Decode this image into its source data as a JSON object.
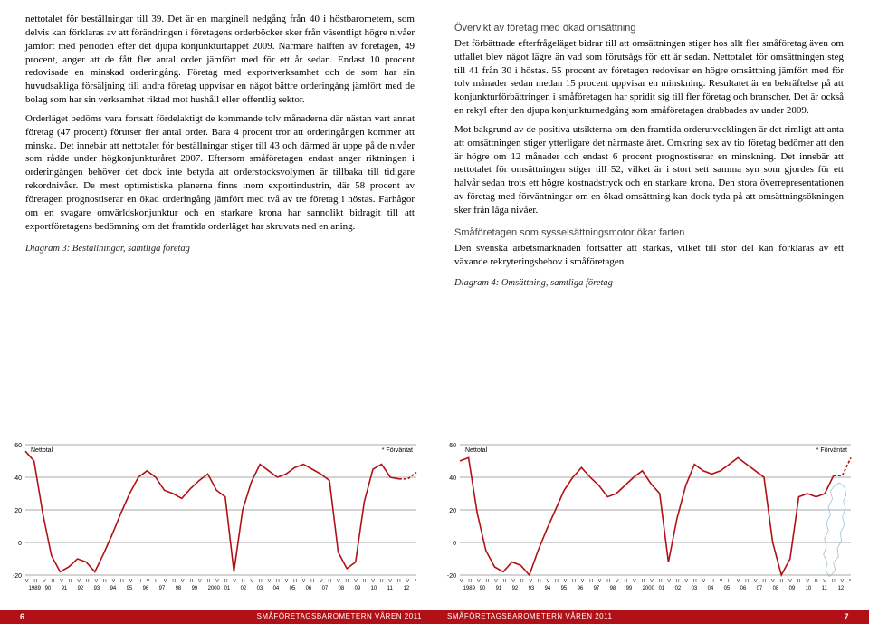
{
  "left": {
    "paragraphs": [
      "nettotalet för beställningar till 39. Det är en marginell nedgång från 40 i höstbarometern, som delvis kan förklaras av att förändringen i företagens orderböcker sker från väsentligt högre nivåer jämfört med perioden efter det djupa konjunkturtappet 2009. Närmare hälften av företagen, 49 procent, anger att de fått fler antal order jämfört med för ett år sedan. Endast 10 procent redovisade en minskad orderingång. Företag med exportverksamhet och de som har sin huvudsakliga försäljning till andra företag uppvisar en något bättre orderingång jämfört med de bolag som har sin verksamhet riktad mot hushåll eller offentlig sektor.",
      "Orderläget bedöms vara fortsatt fördelaktigt de kommande tolv månaderna där nästan vart annat företag (47 procent) förutser fler antal order. Bara 4 procent tror att orderingången kommer att minska. Det innebär att nettotalet för beställningar stiger till 43 och därmed är uppe på de nivåer som rådde under högkonjunkturåret 2007. Eftersom småföretagen endast anger riktningen i orderingången behöver det dock inte betyda att orderstocksvolymen är tillbaka till tidigare rekordnivåer. De mest optimistiska planerna finns inom exportindustrin, där 58 procent av företagen prognostiserar en ökad orderingång jämfört med två av tre företag i höstas. Farhågor om en svagare omvärldskonjunktur och en starkare krona har sannolikt bidragit till att exportföretagens bedömning om det framtida orderläget har skruvats ned en aning."
    ],
    "chart_caption": "Diagram 3: Beställningar, samtliga företag"
  },
  "right": {
    "heading1": "Övervikt av företag med ökad omsättning",
    "para1": "Det förbättrade efterfrågeläget bidrar till att omsättningen stiger hos allt fler småföretag även om utfallet blev något lägre än vad som förutsågs för ett år sedan. Nettotalet för omsättningen steg till 41 från 30 i höstas. 55 procent av företagen redovisar en högre omsättning jämfört med för tolv månader sedan medan 15 procent uppvisar en minskning. Resultatet är en bekräftelse på att konjunkturförbättringen i småföretagen har spridit sig till fler företag och branscher. Det är också en rekyl efter den djupa konjunkturnedgång som småföretagen drabbades av under 2009.",
    "para2": "Mot bakgrund av de positiva utsikterna om den framtida orderutvecklingen är det rimligt att anta att omsättningen stiger ytterligare det närmaste året. Omkring sex av tio företag bedömer att den är högre om 12 månader och endast 6 procent prognostiserar en minskning. Det innebär att nettotalet för omsättningen stiger till 52, vilket är i stort sett samma syn som gjordes för ett halvår sedan trots ett högre kostnadstryck och en starkare krona. Den stora överrepresentationen av företag med förväntningar om en ökad omsättning kan dock tyda på att omsättningsökningen sker från låga nivåer.",
    "heading2": "Småföretagen som sysselsättningsmotor ökar farten",
    "para3": "Den svenska arbetsmarknaden fortsätter att stärkas, vilket till stor del kan förklaras av ett växande rekryteringsbehov i småföretagen.",
    "chart_caption": "Diagram 4: Omsättning, samtliga företag"
  },
  "footer": {
    "left_page": "6",
    "right_page": "7",
    "title": "SMÅFÖRETAGSBAROMETERN VÅREN 2011"
  },
  "chart_common": {
    "y_ticks": [
      -20,
      0,
      20,
      40,
      60
    ],
    "ylim": [
      -20,
      60
    ],
    "label_nettotal": "Nettotal",
    "label_forvantat": "* Förväntat",
    "x_years": [
      "1989",
      "90",
      "91",
      "92",
      "93",
      "94",
      "95",
      "96",
      "97",
      "98",
      "99",
      "2000",
      "01",
      "02",
      "03",
      "04",
      "05",
      "06",
      "07",
      "08",
      "09",
      "10",
      "11",
      "12"
    ],
    "x_season": "V H V H V H V H V H V H V H V H V H V H V H V H V H V H V H V H V H V H V H V H V H V H V *",
    "line_color": "#b11116",
    "grid_color": "#555555",
    "dash_color": "#b11116",
    "label_fontsize": 7
  },
  "chart3": {
    "type": "line",
    "values": [
      56,
      50,
      18,
      -8,
      -18,
      -15,
      -10,
      -12,
      -18,
      -7,
      5,
      18,
      30,
      40,
      44,
      40,
      32,
      30,
      27,
      33,
      38,
      42,
      32,
      28,
      -18,
      20,
      37,
      48,
      44,
      40,
      42,
      46,
      48,
      45,
      42,
      38,
      -6,
      -16,
      -12,
      25,
      45,
      48,
      40,
      39
    ],
    "forecast": [
      39,
      43
    ]
  },
  "chart4": {
    "type": "line",
    "values": [
      50,
      52,
      18,
      -5,
      -15,
      -18,
      -12,
      -14,
      -20,
      -5,
      8,
      20,
      32,
      40,
      46,
      40,
      35,
      28,
      30,
      35,
      40,
      44,
      36,
      30,
      -12,
      15,
      35,
      48,
      44,
      42,
      44,
      48,
      52,
      48,
      44,
      40,
      0,
      -20,
      -10,
      28,
      30,
      28,
      30,
      41
    ],
    "forecast": [
      41,
      52
    ]
  }
}
